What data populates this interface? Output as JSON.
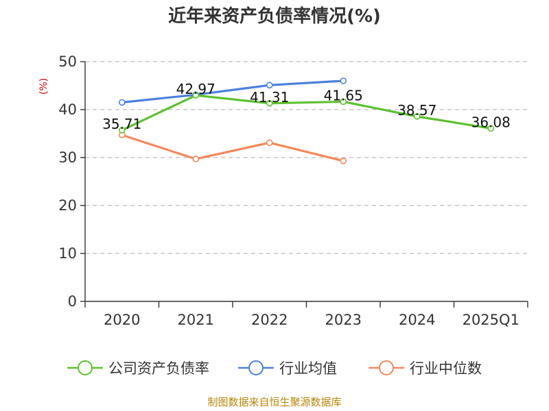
{
  "chart_data": {
    "type": "line",
    "title": "近年来资产负债率情况(%)",
    "unit_label": "(%)",
    "categories": [
      "2020",
      "2021",
      "2022",
      "2023",
      "2024",
      "2025Q1"
    ],
    "ylim": [
      0,
      50
    ],
    "yticks": [
      0,
      10,
      20,
      30,
      40,
      50
    ],
    "grid": true,
    "legend_position": "bottom",
    "series": [
      {
        "name": "公司资产负债率",
        "color": "#5cc12e",
        "values": [
          35.71,
          42.97,
          41.31,
          41.65,
          38.57,
          36.08
        ],
        "labels": [
          "35.71",
          "42.97",
          "41.31",
          "41.65",
          "38.57",
          "36.08"
        ]
      },
      {
        "name": "行业均值",
        "color": "#4a7fdc",
        "values": [
          41.5,
          43.1,
          45.1,
          46.0,
          null,
          null
        ]
      },
      {
        "name": "行业中位数",
        "color": "#f5875a",
        "values": [
          34.7,
          29.7,
          33.1,
          29.3,
          null,
          null
        ]
      }
    ]
  },
  "source": "制图数据来自恒生聚源数据库"
}
